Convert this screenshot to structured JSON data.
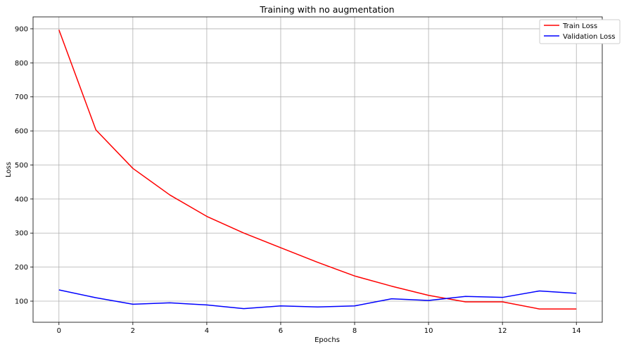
{
  "chart_data": {
    "type": "line",
    "title": "Training with no augmentation",
    "xlabel": "Epochs",
    "ylabel": "Loss",
    "x": [
      0,
      1,
      2,
      3,
      4,
      5,
      6,
      7,
      8,
      9,
      10,
      11,
      12,
      13,
      14
    ],
    "xlim": [
      -0.7,
      14.7
    ],
    "ylim": [
      38,
      935
    ],
    "xticks": [
      0,
      2,
      4,
      6,
      8,
      10,
      12,
      14
    ],
    "yticks": [
      100,
      200,
      300,
      400,
      500,
      600,
      700,
      800,
      900
    ],
    "grid": true,
    "legend_position": "top-right",
    "series": [
      {
        "name": "Train Loss",
        "color": "#ff0000",
        "values": [
          897,
          603,
          490,
          412,
          349,
          300,
          257,
          214,
          174,
          144,
          117,
          98,
          98,
          77,
          77
        ]
      },
      {
        "name": "Validation Loss",
        "color": "#0000ff",
        "values": [
          133,
          110,
          91,
          95,
          89,
          78,
          86,
          83,
          86,
          107,
          102,
          114,
          111,
          130,
          123
        ]
      }
    ]
  }
}
